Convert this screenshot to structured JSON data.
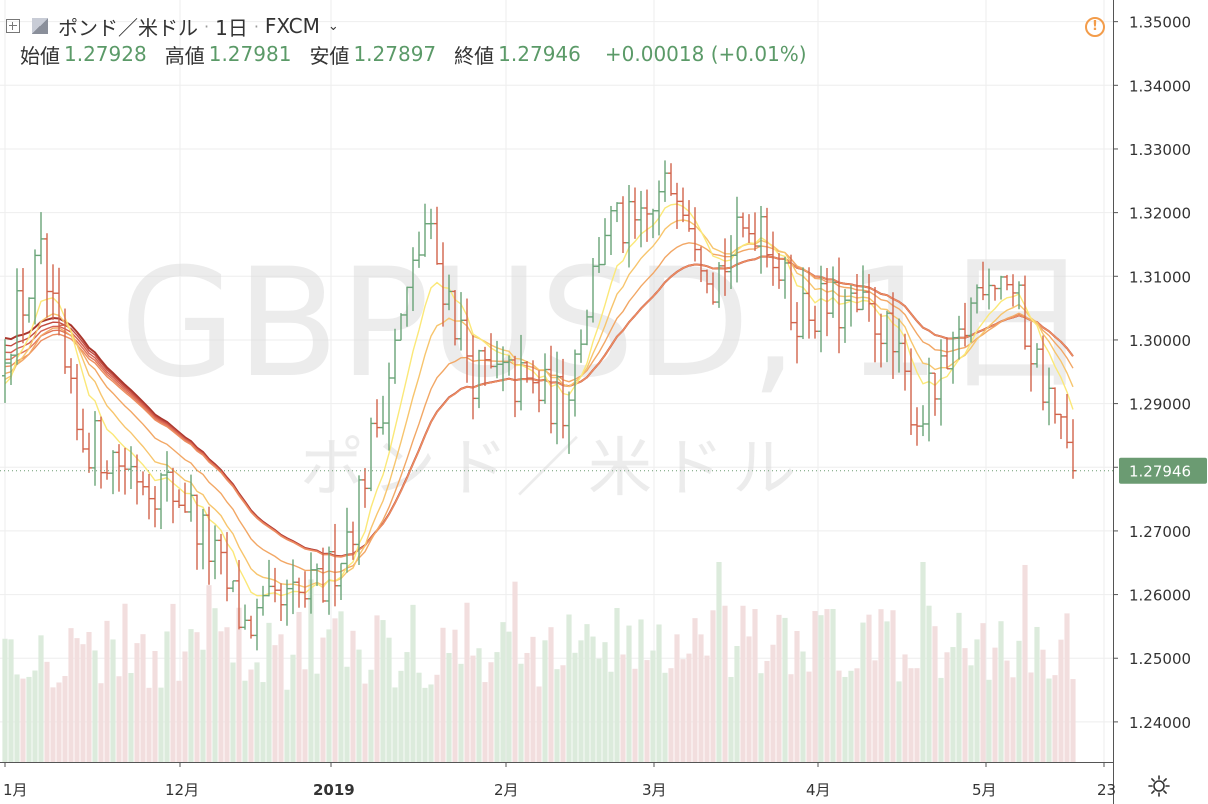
{
  "header": {
    "symbol": "ポンド／米ドル",
    "interval": "1日",
    "exchange": "FXCM",
    "ohlc": [
      {
        "label": "始値",
        "value": "1.27928"
      },
      {
        "label": "高値",
        "value": "1.27981"
      },
      {
        "label": "安値",
        "value": "1.27897"
      },
      {
        "label": "終値",
        "value": "1.27946"
      }
    ],
    "change": "+0.00018 (+0.01%)"
  },
  "watermark": {
    "symbol": "GBPUSD, 1日",
    "name": "ポンド／米ドル"
  },
  "colors": {
    "up": "#6aa478",
    "down": "#d1644b",
    "volume_up": "#dcebdc",
    "volume_down": "#f2dede",
    "ribbon": [
      "#fbe878",
      "#f7c56d",
      "#f2a765",
      "#ec8d60",
      "#e2765a",
      "#d66152",
      "#c24a3f",
      "#a9362c"
    ],
    "price_label_bg": "#6b9b72",
    "grid": "#eeeeee"
  },
  "icons": {
    "warning": "!",
    "settings": "gear-icon"
  },
  "chart_data": {
    "type": "candlestick",
    "title": "GBPUSD, 1日",
    "series_name": "ポンド／米ドル",
    "x_axis_labels": [
      "1月",
      "12月",
      "2019",
      "2月",
      "3月",
      "4月",
      "5月",
      "23"
    ],
    "y_axis_ticks": [
      "1.35000",
      "1.34000",
      "1.33000",
      "1.32000",
      "1.31000",
      "1.30000",
      "1.29000",
      "1.28000",
      "1.27000",
      "1.26000",
      "1.25000",
      "1.24000"
    ],
    "y_range": [
      1.2337,
      1.3534
    ],
    "last_price": 1.27946,
    "last_price_label": "1.27946",
    "key_points": [
      {
        "bar": 0,
        "close": 1.3
      },
      {
        "bar": 6,
        "close": 1.312
      },
      {
        "bar": 12,
        "close": 1.285
      },
      {
        "bar": 30,
        "close": 1.275
      },
      {
        "bar": 40,
        "close": 1.255
      },
      {
        "bar": 53,
        "close": 1.261
      },
      {
        "bar": 58,
        "close": 1.272
      },
      {
        "bar": 64,
        "close": 1.295
      },
      {
        "bar": 70,
        "close": 1.318
      },
      {
        "bar": 78,
        "close": 1.295
      },
      {
        "bar": 86,
        "close": 1.293
      },
      {
        "bar": 93,
        "close": 1.29
      },
      {
        "bar": 100,
        "close": 1.318
      },
      {
        "bar": 106,
        "close": 1.317
      },
      {
        "bar": 112,
        "close": 1.326
      },
      {
        "bar": 118,
        "close": 1.31
      },
      {
        "bar": 126,
        "close": 1.32
      },
      {
        "bar": 131,
        "close": 1.305
      },
      {
        "bar": 138,
        "close": 1.305
      },
      {
        "bar": 146,
        "close": 1.303
      },
      {
        "bar": 152,
        "close": 1.288
      },
      {
        "bar": 158,
        "close": 1.296
      },
      {
        "bar": 163,
        "close": 1.311
      },
      {
        "bar": 167,
        "close": 1.31
      },
      {
        "bar": 171,
        "close": 1.299
      },
      {
        "bar": 176,
        "close": 1.285
      },
      {
        "bar": 178,
        "close": 1.27946
      }
    ],
    "ribbon_ema_periods": [
      8,
      13,
      21,
      34,
      55,
      89,
      144,
      200
    ],
    "volume_range": [
      0,
      1.0
    ]
  }
}
